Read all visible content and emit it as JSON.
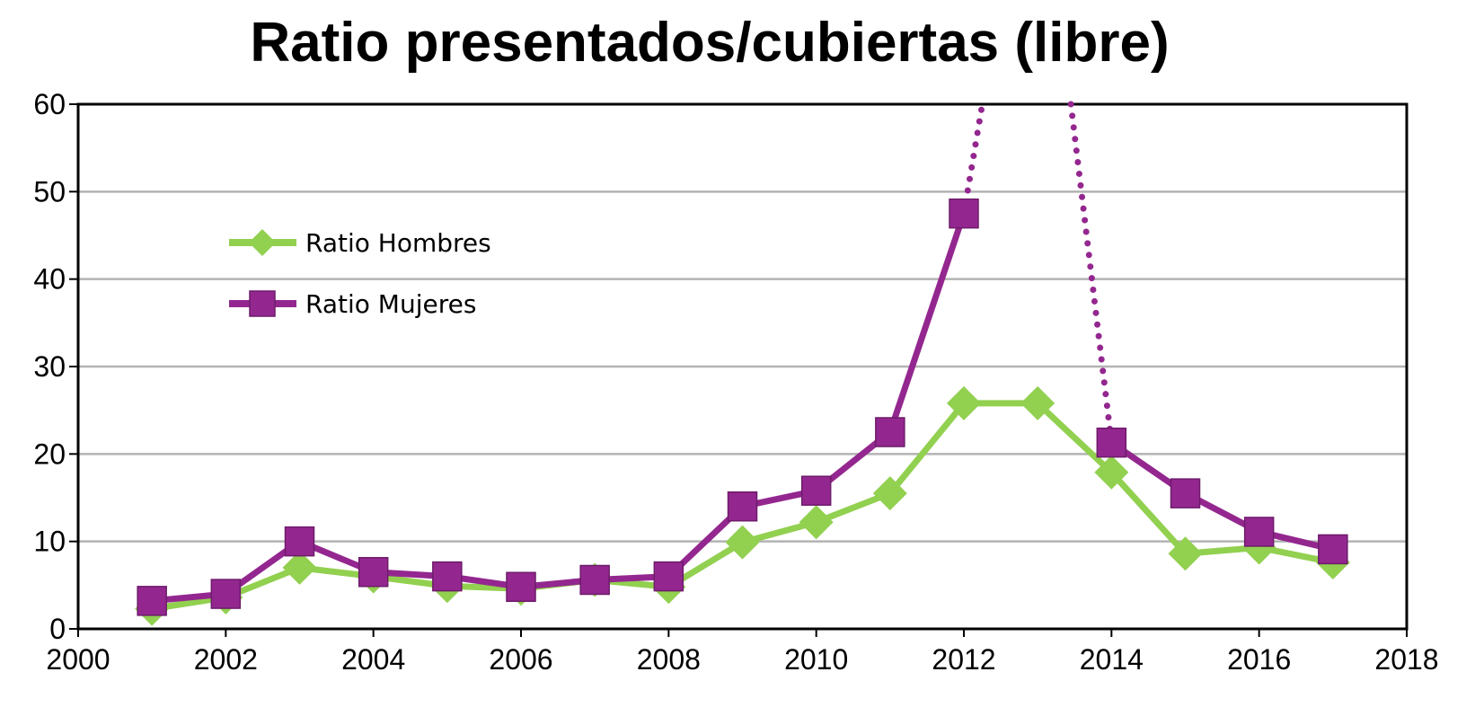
{
  "chart_data": {
    "type": "line",
    "title": "Ratio presentados/cubiertas (libre)",
    "xlabel": "",
    "ylabel": "",
    "xlim": [
      2000,
      2018
    ],
    "ylim": [
      0,
      60
    ],
    "xticks": [
      2000,
      2002,
      2004,
      2006,
      2008,
      2010,
      2012,
      2014,
      2016,
      2018
    ],
    "yticks": [
      0,
      10,
      20,
      30,
      40,
      50,
      60
    ],
    "grid": "horizontal",
    "legend_position": "top-left",
    "series": [
      {
        "name": "Ratio Hombres",
        "color": "#92d050",
        "marker": "diamond",
        "x": [
          2001,
          2002,
          2003,
          2004,
          2005,
          2006,
          2007,
          2008,
          2009,
          2010,
          2011,
          2012,
          2013,
          2014,
          2015,
          2016,
          2017
        ],
        "values": [
          2.3,
          3.6,
          7.0,
          6.0,
          4.9,
          4.6,
          5.6,
          4.8,
          9.9,
          12.2,
          15.5,
          25.8,
          25.8,
          17.9,
          8.6,
          9.3,
          7.6
        ]
      },
      {
        "name": "Ratio Mujeres",
        "color": "#93278f",
        "marker": "square",
        "x": [
          2001,
          2002,
          2003,
          2004,
          2005,
          2006,
          2007,
          2008,
          2009,
          2010,
          2011,
          2012,
          2014,
          2015,
          2016,
          2017
        ],
        "values": [
          3.2,
          4.0,
          10.0,
          6.5,
          6.0,
          4.8,
          5.6,
          6.0,
          14.0,
          15.8,
          22.5,
          47.5,
          21.3,
          15.5,
          11.1,
          9.1
        ],
        "off_scale_link": {
          "from": [
            2012,
            47.5
          ],
          "via": [
            [
              2012.25,
              60
            ],
            [
              2013.45,
              60
            ]
          ],
          "to": [
            2014,
            21.3
          ],
          "style": "dotted"
        }
      }
    ]
  }
}
